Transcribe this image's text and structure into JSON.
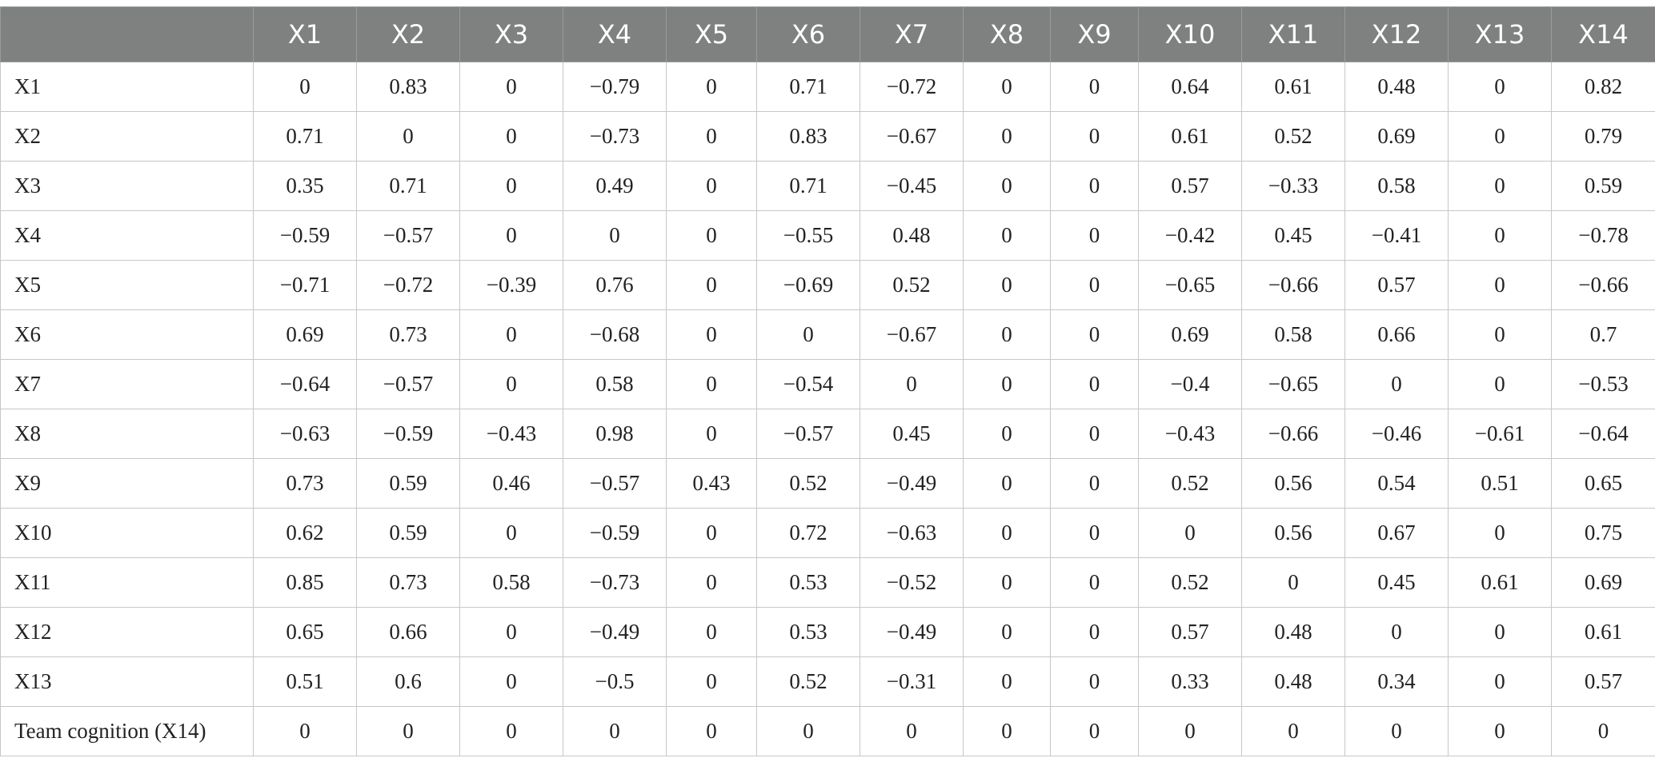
{
  "table": {
    "corner_label": "",
    "columns": [
      "X1",
      "X2",
      "X3",
      "X4",
      "X5",
      "X6",
      "X7",
      "X8",
      "X9",
      "X10",
      "X11",
      "X12",
      "X13",
      "X14"
    ],
    "rows": [
      {
        "label": "X1",
        "values": [
          "0",
          "0.83",
          "0",
          "−0.79",
          "0",
          "0.71",
          "−0.72",
          "0",
          "0",
          "0.64",
          "0.61",
          "0.48",
          "0",
          "0.82"
        ]
      },
      {
        "label": "X2",
        "values": [
          "0.71",
          "0",
          "0",
          "−0.73",
          "0",
          "0.83",
          "−0.67",
          "0",
          "0",
          "0.61",
          "0.52",
          "0.69",
          "0",
          "0.79"
        ]
      },
      {
        "label": "X3",
        "values": [
          "0.35",
          "0.71",
          "0",
          "0.49",
          "0",
          "0.71",
          "−0.45",
          "0",
          "0",
          "0.57",
          "−0.33",
          "0.58",
          "0",
          "0.59"
        ]
      },
      {
        "label": "X4",
        "values": [
          "−0.59",
          "−0.57",
          "0",
          "0",
          "0",
          "−0.55",
          "0.48",
          "0",
          "0",
          "−0.42",
          "0.45",
          "−0.41",
          "0",
          "−0.78"
        ]
      },
      {
        "label": "X5",
        "values": [
          "−0.71",
          "−0.72",
          "−0.39",
          "0.76",
          "0",
          "−0.69",
          "0.52",
          "0",
          "0",
          "−0.65",
          "−0.66",
          "0.57",
          "0",
          "−0.66"
        ]
      },
      {
        "label": "X6",
        "values": [
          "0.69",
          "0.73",
          "0",
          "−0.68",
          "0",
          "0",
          "−0.67",
          "0",
          "0",
          "0.69",
          "0.58",
          "0.66",
          "0",
          "0.7"
        ]
      },
      {
        "label": "X7",
        "values": [
          "−0.64",
          "−0.57",
          "0",
          "0.58",
          "0",
          "−0.54",
          "0",
          "0",
          "0",
          "−0.4",
          "−0.65",
          "0",
          "0",
          "−0.53"
        ]
      },
      {
        "label": "X8",
        "values": [
          "−0.63",
          "−0.59",
          "−0.43",
          "0.98",
          "0",
          "−0.57",
          "0.45",
          "0",
          "0",
          "−0.43",
          "−0.66",
          "−0.46",
          "−0.61",
          "−0.64"
        ]
      },
      {
        "label": "X9",
        "values": [
          "0.73",
          "0.59",
          "0.46",
          "−0.57",
          "0.43",
          "0.52",
          "−0.49",
          "0",
          "0",
          "0.52",
          "0.56",
          "0.54",
          "0.51",
          "0.65"
        ]
      },
      {
        "label": "X10",
        "values": [
          "0.62",
          "0.59",
          "0",
          "−0.59",
          "0",
          "0.72",
          "−0.63",
          "0",
          "0",
          "0",
          "0.56",
          "0.67",
          "0",
          "0.75"
        ]
      },
      {
        "label": "X11",
        "values": [
          "0.85",
          "0.73",
          "0.58",
          "−0.73",
          "0",
          "0.53",
          "−0.52",
          "0",
          "0",
          "0.52",
          "0",
          "0.45",
          "0.61",
          "0.69"
        ]
      },
      {
        "label": "X12",
        "values": [
          "0.65",
          "0.66",
          "0",
          "−0.49",
          "0",
          "0.53",
          "−0.49",
          "0",
          "0",
          "0.57",
          "0.48",
          "0",
          "0",
          "0.61"
        ]
      },
      {
        "label": "X13",
        "values": [
          "0.51",
          "0.6",
          "0",
          "−0.5",
          "0",
          "0.52",
          "−0.31",
          "0",
          "0",
          "0.33",
          "0.48",
          "0.34",
          "0",
          "0.57"
        ]
      },
      {
        "label": "Team cognition (X14)",
        "values": [
          "0",
          "0",
          "0",
          "0",
          "0",
          "0",
          "0",
          "0",
          "0",
          "0",
          "0",
          "0",
          "0",
          "0"
        ]
      }
    ]
  },
  "colors": {
    "header_bg": "#7f8180",
    "header_text": "#ffffff",
    "grid_line": "#c7c7c7",
    "cell_text": "#222222"
  }
}
